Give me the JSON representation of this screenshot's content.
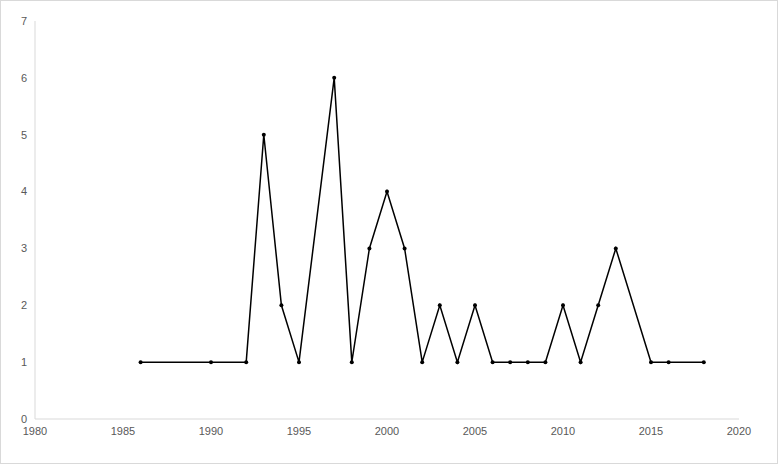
{
  "chart_data": {
    "type": "line",
    "x": [
      1986,
      1990,
      1992,
      1993,
      1994,
      1995,
      1997,
      1998,
      1999,
      2000,
      2001,
      2002,
      2003,
      2004,
      2005,
      2006,
      2007,
      2008,
      2009,
      2010,
      2011,
      2012,
      2013,
      2015,
      2016,
      2018
    ],
    "values": [
      1,
      1,
      1,
      5,
      2,
      1,
      6,
      1,
      3,
      4,
      3,
      1,
      2,
      1,
      2,
      1,
      1,
      1,
      1,
      2,
      1,
      2,
      3,
      1,
      1,
      1
    ],
    "color": "#000000",
    "marker": "circle",
    "xlim": [
      1980,
      2020
    ],
    "xticks": [
      1980,
      1985,
      1990,
      1995,
      2000,
      2005,
      2010,
      2015,
      2020
    ],
    "ylim": [
      0,
      7
    ],
    "yticks": [
      0,
      1,
      2,
      3,
      4,
      5,
      6,
      7
    ],
    "grid": false
  }
}
